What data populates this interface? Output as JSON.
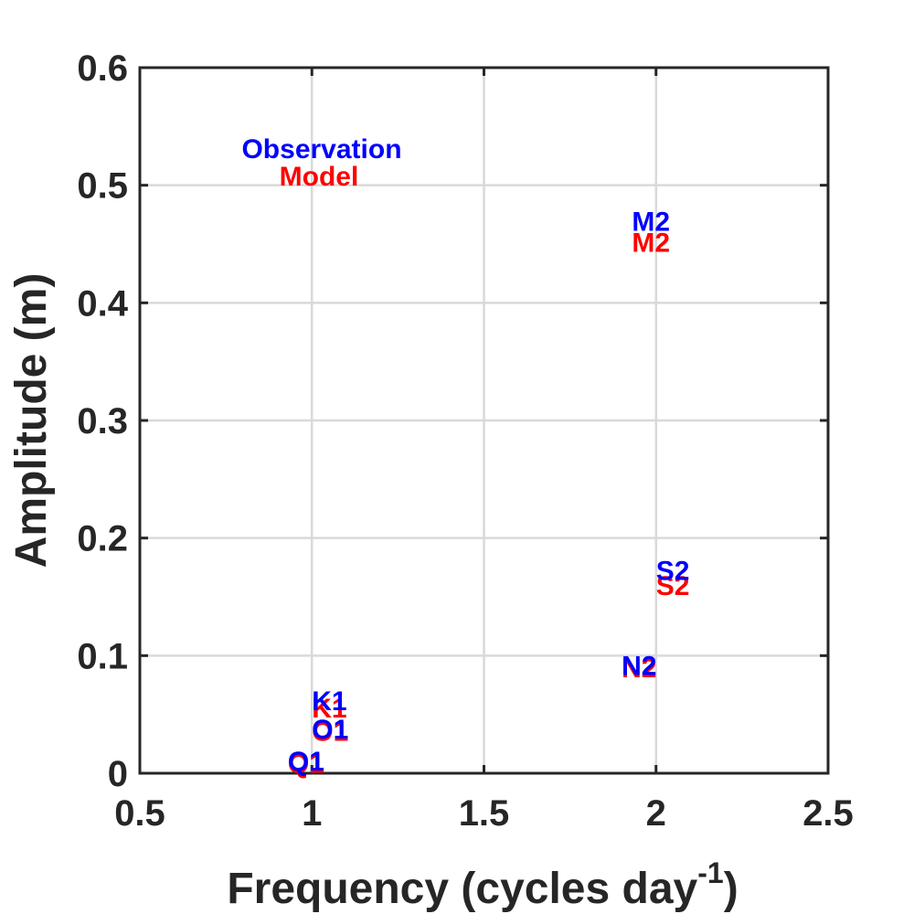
{
  "chart_data": {
    "type": "scatter",
    "title": "",
    "xlabel": "Frequency (cycles day",
    "xlabel_superscript": "-1",
    "xlabel_suffix": ")",
    "ylabel": "Amplitude (m)",
    "xlim": [
      0.5,
      2.5
    ],
    "ylim": [
      0,
      0.6
    ],
    "xticks": [
      0.5,
      1,
      1.5,
      2,
      2.5
    ],
    "xtick_labels": [
      "0.5",
      "1",
      "1.5",
      "2",
      "2.5"
    ],
    "yticks": [
      0,
      0.1,
      0.2,
      0.3,
      0.4,
      0.5,
      0.6
    ],
    "ytick_labels": [
      "0",
      "0.1",
      "0.2",
      "0.3",
      "0.4",
      "0.5",
      "0.6"
    ],
    "grid": true,
    "legend_placement": "top-left",
    "series": [
      {
        "name": "Observation",
        "color": "#0000ff",
        "points": [
          {
            "label": "Q1",
            "x": 0.93,
            "y": 0.011
          },
          {
            "label": "O1",
            "x": 1.0,
            "y": 0.038
          },
          {
            "label": "K1",
            "x": 1.0,
            "y": 0.062
          },
          {
            "label": "N2",
            "x": 1.9,
            "y": 0.092
          },
          {
            "label": "M2",
            "x": 1.93,
            "y": 0.47
          },
          {
            "label": "S2",
            "x": 2.0,
            "y": 0.173
          }
        ]
      },
      {
        "name": "Model",
        "color": "#ff0000",
        "points": [
          {
            "label": "Q1",
            "x": 0.93,
            "y": 0.009
          },
          {
            "label": "O1",
            "x": 1.0,
            "y": 0.036
          },
          {
            "label": "K1",
            "x": 1.0,
            "y": 0.056
          },
          {
            "label": "N2",
            "x": 1.9,
            "y": 0.09
          },
          {
            "label": "M2",
            "x": 1.93,
            "y": 0.452
          },
          {
            "label": "S2",
            "x": 2.0,
            "y": 0.16
          }
        ]
      }
    ]
  }
}
